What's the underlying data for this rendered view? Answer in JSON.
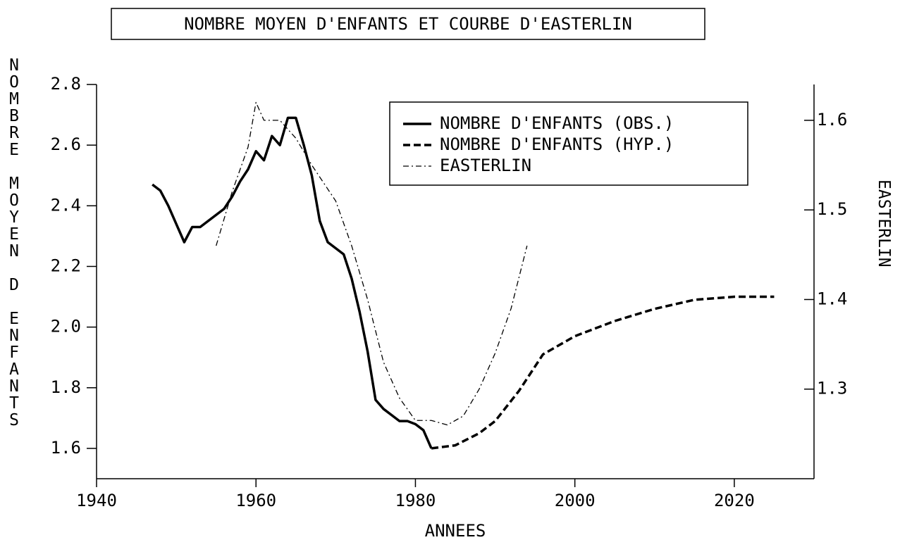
{
  "chart_data": {
    "type": "line",
    "title": "NOMBRE MOYEN D'ENFANTS ET COURBE D'EASTERLIN",
    "x_label": "ANNEES",
    "y_label": "NOMBRE MOYEN D ENFANTS",
    "y2_label": "EASTERLIN",
    "xlim": [
      1940,
      2030
    ],
    "xticks": [
      1940,
      1960,
      1980,
      2000,
      2020
    ],
    "ylim": [
      1.5,
      2.8
    ],
    "yticks": [
      1.6,
      1.8,
      {
        "value": 2.0,
        "label": "2.0"
      },
      2.2,
      2.4,
      2.6,
      2.8
    ],
    "y2lim": [
      1.2,
      1.64
    ],
    "y2ticks": [
      1.3,
      1.4,
      1.5,
      1.6
    ],
    "legend": "upper right",
    "series": [
      {
        "name": "NOMBRE D'ENFANTS (OBS.)",
        "color": "#000000",
        "style": "solid",
        "x": [
          1947,
          1948,
          1949,
          1950,
          1951,
          1952,
          1953,
          1954,
          1955,
          1956,
          1957,
          1958,
          1959,
          1960,
          1961,
          1962,
          1963,
          1964,
          1965,
          1966,
          1967,
          1968,
          1969,
          1970,
          1971,
          1972,
          1973,
          1974,
          1975,
          1976,
          1977,
          1978,
          1979,
          1980,
          1981,
          1982
        ],
        "values": [
          2.47,
          2.45,
          2.4,
          2.34,
          2.28,
          2.33,
          2.33,
          2.35,
          2.37,
          2.39,
          2.43,
          2.48,
          2.52,
          2.58,
          2.55,
          2.63,
          2.6,
          2.69,
          2.69,
          2.6,
          2.5,
          2.35,
          2.28,
          2.26,
          2.24,
          2.16,
          2.05,
          1.92,
          1.76,
          1.73,
          1.71,
          1.69,
          1.69,
          1.68,
          1.66,
          1.6
        ]
      },
      {
        "name": "NOMBRE D'ENFANTS (HYP.)",
        "color": "#000000",
        "style": "dashed",
        "x": [
          1982,
          1985,
          1988,
          1990,
          1993,
          1996,
          2000,
          2005,
          2010,
          2015,
          2020,
          2025
        ],
        "values": [
          1.6,
          1.61,
          1.65,
          1.69,
          1.79,
          1.91,
          1.97,
          2.02,
          2.06,
          2.09,
          2.1,
          2.1
        ]
      },
      {
        "name": "EASTERLIN",
        "color": "#000000",
        "style": "dashdot",
        "axis": "y2",
        "x": [
          1955,
          1957,
          1959,
          1960,
          1961,
          1963,
          1965,
          1967,
          1970,
          1972,
          1974,
          1976,
          1978,
          1980,
          1982,
          1984,
          1986,
          1988,
          1990,
          1992,
          1994
        ],
        "values": [
          1.46,
          1.52,
          1.57,
          1.62,
          1.6,
          1.6,
          1.58,
          1.55,
          1.51,
          1.46,
          1.4,
          1.33,
          1.29,
          1.265,
          1.265,
          1.26,
          1.27,
          1.3,
          1.34,
          1.39,
          1.46
        ]
      }
    ]
  }
}
